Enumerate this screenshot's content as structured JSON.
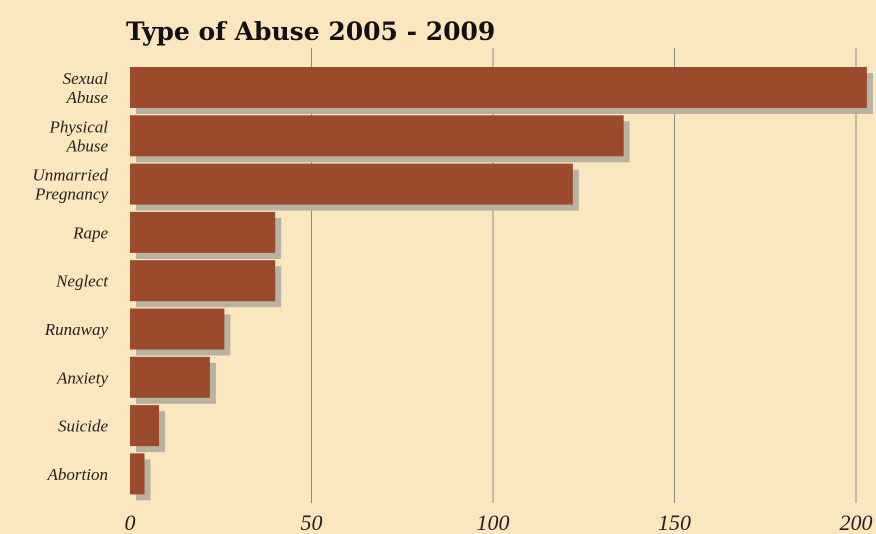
{
  "chart_data": {
    "type": "bar",
    "orientation": "horizontal",
    "title": "Type of Abuse 2005 - 2009",
    "xlabel": "",
    "ylabel": "",
    "categories": [
      [
        "Sexual",
        "Abuse"
      ],
      [
        "Physical",
        "Abuse"
      ],
      [
        "Unmarried",
        "Pregnancy"
      ],
      [
        "Rape"
      ],
      [
        "Neglect"
      ],
      [
        "Runaway"
      ],
      [
        "Anxiety"
      ],
      [
        "Suicide"
      ],
      [
        "Abortion"
      ]
    ],
    "values": [
      203,
      136,
      122,
      40,
      40,
      26,
      22,
      8,
      4
    ],
    "xlim": [
      0,
      200
    ],
    "ticks": [
      0,
      50,
      100,
      150,
      200
    ],
    "tick_labels": [
      "0",
      "50",
      "100",
      "150",
      "200"
    ],
    "grid": true,
    "colors": {
      "bar": "#9c4a2c",
      "shadow": "#b9b1a4",
      "background": "#fbe7bf",
      "grid": "#8c8c8c"
    }
  }
}
